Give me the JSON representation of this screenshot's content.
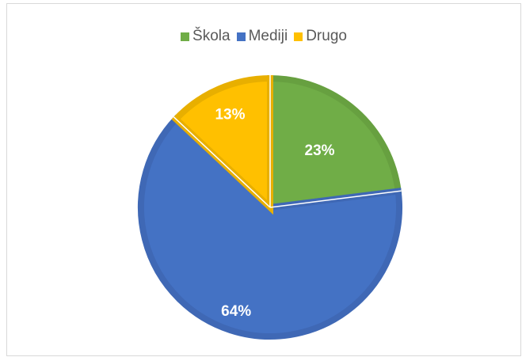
{
  "chart_data": {
    "type": "pie",
    "categories": [
      "Škola",
      "Mediji",
      "Drugo"
    ],
    "values": [
      23,
      64,
      13
    ],
    "labels": [
      "23%",
      "64%",
      "13%"
    ],
    "colors": [
      "#70ad47",
      "#4472c4",
      "#ffc000"
    ],
    "border_colors": [
      "#67a040",
      "#3f68b5",
      "#e8af00"
    ],
    "legend_position": "top",
    "start_angle_deg": 0,
    "direction": "clockwise"
  }
}
